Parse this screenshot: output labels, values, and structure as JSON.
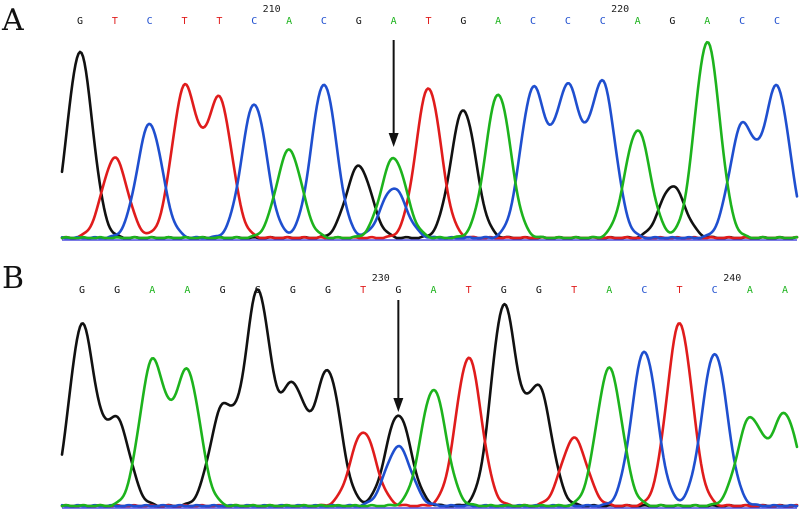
{
  "chart_data": [
    {
      "type": "line",
      "panel_label": "A",
      "colors": {
        "A": "#1db31d",
        "C": "#1f4fcf",
        "G": "#111111",
        "T": "#e01c1c"
      },
      "position_labels": [
        {
          "text": "210",
          "after_index": 5
        },
        {
          "text": "220",
          "after_index": 15
        }
      ],
      "bases": [
        "G",
        "T",
        "C",
        "T",
        "T",
        "C",
        "A",
        "C",
        "G",
        "A",
        "T",
        "G",
        "A",
        "C",
        "C",
        "C",
        "A",
        "G",
        "A",
        "C",
        "C"
      ],
      "arrow_index": 9,
      "peaks": [
        {
          "base": "G",
          "height": 0.93
        },
        {
          "base": "T",
          "height": 0.4
        },
        {
          "base": "C",
          "height": 0.57
        },
        {
          "base": "T",
          "height": 0.75
        },
        {
          "base": "T",
          "height": 0.69
        },
        {
          "base": "C",
          "height": 0.67
        },
        {
          "base": "A",
          "height": 0.44
        },
        {
          "base": "C",
          "height": 0.77
        },
        {
          "base": "G",
          "height": 0.36
        },
        {
          "base": "A",
          "height": 0.4,
          "secondary": {
            "base": "C",
            "height": 0.25
          }
        },
        {
          "base": "T",
          "height": 0.75
        },
        {
          "base": "G",
          "height": 0.64
        },
        {
          "base": "A",
          "height": 0.72
        },
        {
          "base": "C",
          "height": 0.74
        },
        {
          "base": "C",
          "height": 0.74
        },
        {
          "base": "C",
          "height": 0.77
        },
        {
          "base": "A",
          "height": 0.54
        },
        {
          "base": "G",
          "height": 0.26
        },
        {
          "base": "A",
          "height": 0.98
        },
        {
          "base": "C",
          "height": 0.56
        },
        {
          "base": "C",
          "height": 0.75
        }
      ]
    },
    {
      "type": "line",
      "panel_label": "B",
      "colors": {
        "A": "#1db31d",
        "C": "#1f4fcf",
        "G": "#111111",
        "T": "#e01c1c"
      },
      "position_labels": [
        {
          "text": "230",
          "after_index": 8
        },
        {
          "text": "240",
          "after_index": 18
        }
      ],
      "bases": [
        "G",
        "G",
        "A",
        "A",
        "G",
        "G",
        "G",
        "G",
        "T",
        "G",
        "A",
        "T",
        "G",
        "G",
        "T",
        "A",
        "C",
        "T",
        "C",
        "A",
        "A"
      ],
      "arrow_index": 9,
      "peaks": [
        {
          "base": "G",
          "height": 0.85
        },
        {
          "base": "G",
          "height": 0.4
        },
        {
          "base": "A",
          "height": 0.68
        },
        {
          "base": "A",
          "height": 0.63
        },
        {
          "base": "G",
          "height": 0.46
        },
        {
          "base": "G",
          "height": 1.0
        },
        {
          "base": "G",
          "height": 0.55
        },
        {
          "base": "G",
          "height": 0.63
        },
        {
          "base": "T",
          "height": 0.35
        },
        {
          "base": "G",
          "height": 0.43,
          "secondary": {
            "base": "C",
            "height": 0.28
          }
        },
        {
          "base": "A",
          "height": 0.55
        },
        {
          "base": "T",
          "height": 0.7
        },
        {
          "base": "G",
          "height": 0.94
        },
        {
          "base": "G",
          "height": 0.55
        },
        {
          "base": "T",
          "height": 0.32
        },
        {
          "base": "A",
          "height": 0.65
        },
        {
          "base": "C",
          "height": 0.73
        },
        {
          "base": "T",
          "height": 0.86
        },
        {
          "base": "C",
          "height": 0.72
        },
        {
          "base": "A",
          "height": 0.41
        },
        {
          "base": "A",
          "height": 0.43
        }
      ]
    }
  ]
}
